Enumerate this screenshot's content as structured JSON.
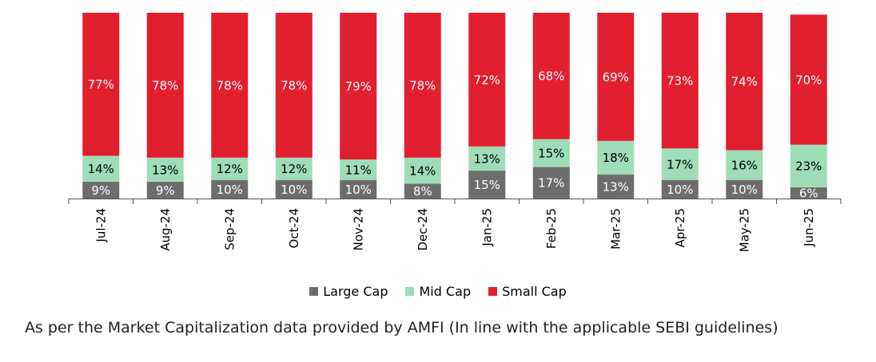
{
  "chart_data": {
    "type": "bar",
    "stacked": true,
    "categories": [
      "Jul-24",
      "Aug-24",
      "Sep-24",
      "Oct-24",
      "Nov-24",
      "Dec-24",
      "Jan-25",
      "Feb-25",
      "Mar-25",
      "Apr-25",
      "May-25",
      "Jun-25"
    ],
    "series": [
      {
        "name": "Large Cap",
        "color": "#6d6d6d",
        "values": [
          9,
          9,
          10,
          10,
          10,
          8,
          15,
          17,
          13,
          10,
          10,
          6
        ]
      },
      {
        "name": "Mid Cap",
        "color": "#9fdcb8",
        "values": [
          14,
          13,
          12,
          12,
          11,
          14,
          13,
          15,
          18,
          17,
          16,
          23
        ]
      },
      {
        "name": "Small Cap",
        "color": "#e11f2f",
        "values": [
          77,
          78,
          78,
          78,
          79,
          78,
          72,
          68,
          69,
          73,
          74,
          70
        ]
      }
    ],
    "value_suffix": "%",
    "ylim": [
      0,
      100
    ],
    "grid": false,
    "legend_position": "bottom"
  },
  "footnote": "As per the Market Capitalization data provided by AMFI (In line with the applicable SEBI guidelines)"
}
